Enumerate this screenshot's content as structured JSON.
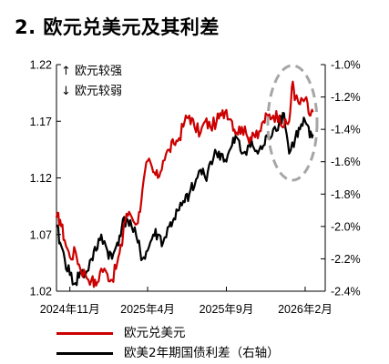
{
  "title": "2. 欧元兑美元及其利差",
  "annotations": {
    "up": "↑ 欧元较强",
    "down": "↓ 欧元较弱"
  },
  "colors": {
    "eurusd": "#cc0000",
    "spread": "#000000",
    "highlight": "#a6a6a6"
  },
  "chart_data": {
    "type": "line",
    "title": "2. 欧元兑美元及其利差",
    "x_tick_labels": [
      "2024年11月",
      "2025年4月",
      "2025年9月",
      "2026年2月"
    ],
    "x_ticks": [
      "2024-11-20",
      "2025-04-20",
      "2025-09-20",
      "2026-02-20"
    ],
    "x_range": [
      "2024-10-25",
      "2026-03-31"
    ],
    "y_left": {
      "ticks": [
        "1.22",
        "1.17",
        "1.12",
        "1.07",
        "1.02"
      ],
      "ylim": [
        1.02,
        1.22
      ]
    },
    "y_right": {
      "ticks": [
        "-1.0%",
        "-1.2%",
        "-1.4%",
        "-1.6%",
        "-1.8%",
        "-2.0%",
        "-2.2%",
        "-2.4%"
      ],
      "ylim": [
        -2.4,
        -1.0
      ],
      "unit": "%"
    },
    "grid": false,
    "legend_position": "bottom",
    "series": [
      {
        "name": "欧元兑美元",
        "axis": "left",
        "x": [
          "2024-10-25",
          "2024-11-01",
          "2024-11-10",
          "2024-11-20",
          "2024-12-01",
          "2024-12-10",
          "2024-12-20",
          "2025-01-01",
          "2025-01-10",
          "2025-01-20",
          "2025-02-01",
          "2025-02-10",
          "2025-02-20",
          "2025-03-01",
          "2025-03-05",
          "2025-03-15",
          "2025-04-01",
          "2025-04-10",
          "2025-04-20",
          "2025-05-01",
          "2025-05-10",
          "2025-05-20",
          "2025-06-01",
          "2025-06-10",
          "2025-06-20",
          "2025-07-01",
          "2025-07-10",
          "2025-07-20",
          "2025-08-01",
          "2025-08-10",
          "2025-08-20",
          "2025-09-01",
          "2025-09-10",
          "2025-09-20",
          "2025-10-01",
          "2025-10-10",
          "2025-10-20",
          "2025-11-01",
          "2025-11-10",
          "2025-11-20",
          "2025-12-01",
          "2025-12-10",
          "2025-12-20",
          "2026-01-01",
          "2026-01-10",
          "2026-01-20",
          "2026-01-27",
          "2026-02-01",
          "2026-02-10",
          "2026-02-20",
          "2026-03-01",
          "2026-03-07"
        ],
        "values": [
          1.085,
          1.083,
          1.065,
          1.05,
          1.055,
          1.04,
          1.035,
          1.03,
          1.025,
          1.04,
          1.035,
          1.03,
          1.045,
          1.06,
          1.08,
          1.09,
          1.08,
          1.11,
          1.135,
          1.125,
          1.12,
          1.135,
          1.145,
          1.15,
          1.155,
          1.17,
          1.175,
          1.165,
          1.16,
          1.17,
          1.165,
          1.17,
          1.175,
          1.18,
          1.17,
          1.16,
          1.165,
          1.155,
          1.16,
          1.155,
          1.17,
          1.175,
          1.175,
          1.175,
          1.165,
          1.17,
          1.205,
          1.19,
          1.185,
          1.19,
          1.175,
          1.178
        ]
      },
      {
        "name": "欧美2年期国债利差（右轴）",
        "axis": "right",
        "x": [
          "2024-10-25",
          "2024-11-01",
          "2024-11-10",
          "2024-11-20",
          "2024-12-01",
          "2024-12-10",
          "2024-12-20",
          "2025-01-01",
          "2025-01-10",
          "2025-01-20",
          "2025-02-01",
          "2025-02-10",
          "2025-02-20",
          "2025-03-01",
          "2025-03-10",
          "2025-03-20",
          "2025-04-01",
          "2025-04-10",
          "2025-04-20",
          "2025-05-01",
          "2025-05-10",
          "2025-05-20",
          "2025-06-01",
          "2025-06-10",
          "2025-06-20",
          "2025-07-01",
          "2025-07-10",
          "2025-07-20",
          "2025-08-01",
          "2025-08-10",
          "2025-08-20",
          "2025-09-01",
          "2025-09-10",
          "2025-09-20",
          "2025-10-01",
          "2025-10-10",
          "2025-10-20",
          "2025-11-01",
          "2025-11-10",
          "2025-11-20",
          "2025-12-01",
          "2025-12-10",
          "2025-12-20",
          "2026-01-01",
          "2026-01-10",
          "2026-01-20",
          "2026-02-01",
          "2026-02-10",
          "2026-02-20",
          "2026-03-01",
          "2026-03-07"
        ],
        "values": [
          -2.0,
          -2.1,
          -2.2,
          -2.3,
          -2.35,
          -2.28,
          -2.3,
          -2.2,
          -2.15,
          -2.05,
          -2.15,
          -2.2,
          -2.1,
          -2.0,
          -1.95,
          -2.0,
          -2.1,
          -2.2,
          -2.15,
          -2.05,
          -2.05,
          -2.1,
          -2.0,
          -1.95,
          -1.9,
          -1.85,
          -1.8,
          -1.75,
          -1.65,
          -1.7,
          -1.6,
          -1.55,
          -1.55,
          -1.6,
          -1.5,
          -1.45,
          -1.55,
          -1.5,
          -1.5,
          -1.55,
          -1.5,
          -1.45,
          -1.4,
          -1.35,
          -1.3,
          -1.55,
          -1.45,
          -1.4,
          -1.35,
          -1.45,
          -1.43
        ]
      }
    ],
    "highlight": {
      "shape": "dashed-ellipse",
      "from": "2026-01-01",
      "to": "2026-03-10"
    }
  }
}
